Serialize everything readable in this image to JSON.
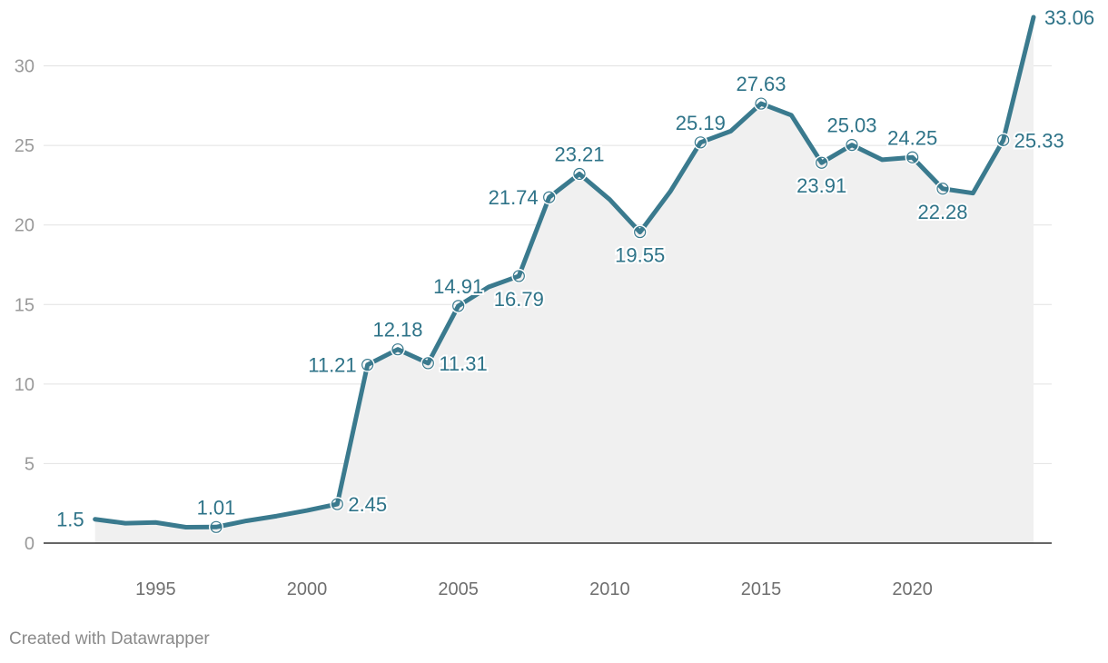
{
  "credit": "Created with Datawrapper",
  "colors": {
    "line": "#3a7a8e",
    "area": "#f0f0f0",
    "label": "#2e7388",
    "grid": "#e2e2e2",
    "axis": "#333333"
  },
  "chart_data": {
    "type": "area",
    "title": "",
    "xlabel": "",
    "ylabel": "",
    "xlim": [
      1991.3,
      2024.6
    ],
    "ylim": [
      0,
      33
    ],
    "yticks": [
      0,
      5,
      10,
      15,
      20,
      25,
      30
    ],
    "xticks": [
      1995,
      2000,
      2005,
      2010,
      2015,
      2020
    ],
    "grid": true,
    "legend": "none",
    "series": [
      {
        "x": [
          1993,
          1994,
          1995,
          1996,
          1997,
          1998,
          1999,
          2000,
          2001,
          2002,
          2003,
          2004,
          2005,
          2006,
          2007,
          2008,
          2009,
          2010,
          2011,
          2012,
          2013,
          2014,
          2015,
          2016,
          2017,
          2018,
          2019,
          2020,
          2021,
          2022,
          2023,
          2024
        ],
        "values": [
          1.5,
          1.25,
          1.3,
          1.0,
          1.01,
          1.4,
          1.7,
          2.05,
          2.45,
          11.21,
          12.18,
          11.31,
          14.91,
          16.1,
          16.79,
          21.74,
          23.21,
          21.6,
          19.55,
          22.1,
          25.19,
          25.9,
          27.63,
          26.9,
          23.91,
          25.03,
          24.1,
          24.25,
          22.28,
          22.0,
          25.33,
          33.06
        ]
      }
    ],
    "annotations": [
      {
        "x": 1993,
        "y": 1.5,
        "text": "1.5",
        "pos": "left",
        "marker": false
      },
      {
        "x": 1997,
        "y": 1.01,
        "text": "1.01",
        "pos": "above",
        "marker": true
      },
      {
        "x": 2001,
        "y": 2.45,
        "text": "2.45",
        "pos": "right",
        "marker": true
      },
      {
        "x": 2002,
        "y": 11.21,
        "text": "11.21",
        "pos": "left",
        "marker": true
      },
      {
        "x": 2003,
        "y": 12.18,
        "text": "12.18",
        "pos": "above",
        "marker": true
      },
      {
        "x": 2004,
        "y": 11.31,
        "text": "11.31",
        "pos": "right",
        "marker": true
      },
      {
        "x": 2005,
        "y": 14.91,
        "text": "14.91",
        "pos": "above",
        "marker": true
      },
      {
        "x": 2007,
        "y": 16.79,
        "text": "16.79",
        "pos": "below",
        "marker": true
      },
      {
        "x": 2008,
        "y": 21.74,
        "text": "21.74",
        "pos": "left",
        "marker": true
      },
      {
        "x": 2009,
        "y": 23.21,
        "text": "23.21",
        "pos": "above",
        "marker": true
      },
      {
        "x": 2011,
        "y": 19.55,
        "text": "19.55",
        "pos": "below",
        "marker": true
      },
      {
        "x": 2013,
        "y": 25.19,
        "text": "25.19",
        "pos": "above",
        "marker": true
      },
      {
        "x": 2015,
        "y": 27.63,
        "text": "27.63",
        "pos": "above",
        "marker": true
      },
      {
        "x": 2017,
        "y": 23.91,
        "text": "23.91",
        "pos": "below",
        "marker": true
      },
      {
        "x": 2018,
        "y": 25.03,
        "text": "25.03",
        "pos": "above",
        "marker": true
      },
      {
        "x": 2020,
        "y": 24.25,
        "text": "24.25",
        "pos": "above",
        "marker": true
      },
      {
        "x": 2021,
        "y": 22.28,
        "text": "22.28",
        "pos": "below",
        "marker": true
      },
      {
        "x": 2023,
        "y": 25.33,
        "text": "25.33",
        "pos": "right",
        "marker": true
      },
      {
        "x": 2024,
        "y": 33.06,
        "text": "33.06",
        "pos": "right",
        "marker": false
      }
    ]
  }
}
